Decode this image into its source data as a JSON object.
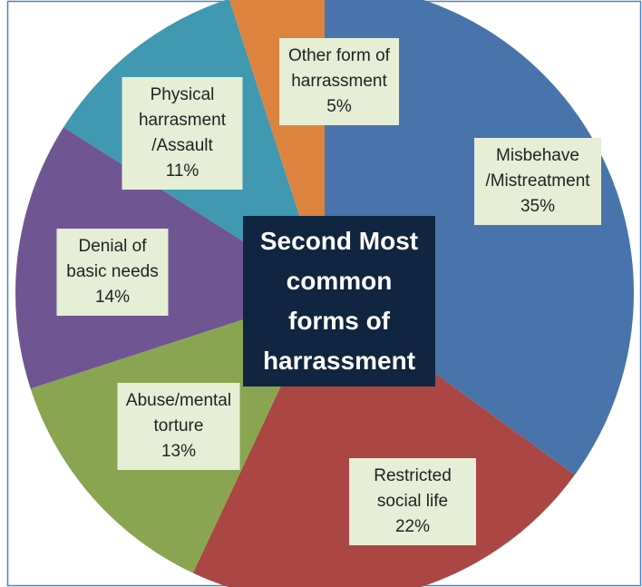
{
  "chart_data": {
    "type": "pie",
    "title": "Second Most common forms of harrassment",
    "categories": [
      "Misbehave /Mistreatment",
      "Restricted social life",
      "Abuse/mental torture",
      "Denial of basic needs",
      "Physical harrasment /Assault",
      "Other form of harrassment"
    ],
    "values": [
      35,
      22,
      13,
      14,
      11,
      5
    ],
    "value_labels": [
      "35%",
      "22%",
      "13%",
      "14%",
      "11%",
      "5%"
    ],
    "colors": [
      "#4874ab",
      "#aa4644",
      "#8aa551",
      "#6f5693",
      "#4098b1",
      "#dc843f"
    ]
  }
}
